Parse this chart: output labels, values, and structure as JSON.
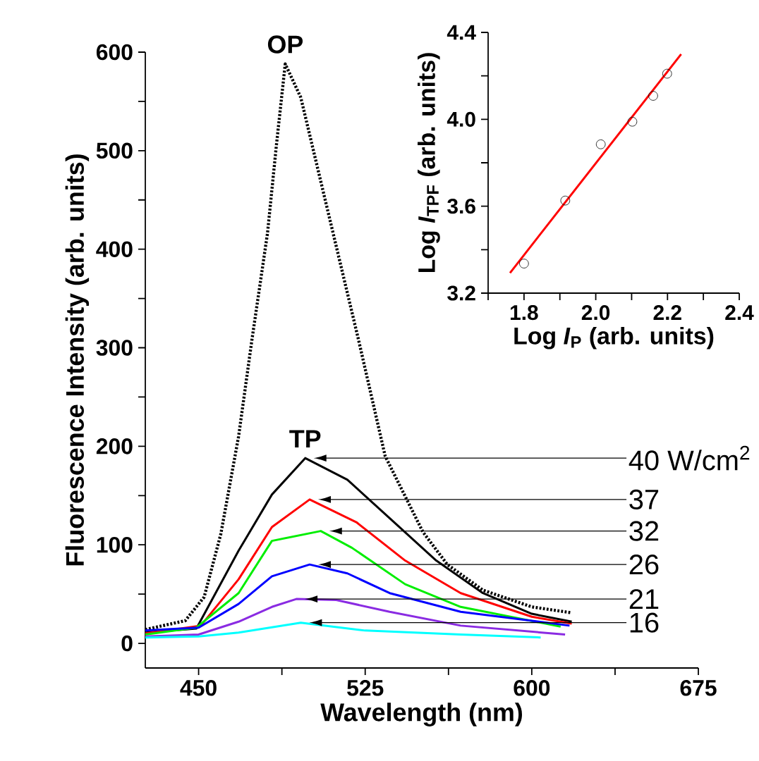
{
  "chart_data": [
    {
      "type": "line",
      "xlabel": "Wavelength (nm)",
      "ylabel": "Fluorescence Intensity (arb. units)",
      "xlim": [
        426,
        675
      ],
      "ylim": [
        -25,
        600
      ],
      "xticks": [
        450,
        {
          "value": 487.5,
          "label": null
        },
        525,
        {
          "value": 562.5,
          "label": null
        },
        600,
        {
          "value": 637.5,
          "label": null
        },
        675
      ],
      "yticks": [
        0,
        {
          "value": 50,
          "label": null
        },
        100,
        {
          "value": 150,
          "label": null
        },
        200,
        {
          "value": 250,
          "label": null
        },
        300,
        {
          "value": 350,
          "label": null
        },
        400,
        {
          "value": 450,
          "label": null
        },
        500,
        {
          "value": 550,
          "label": null
        },
        600
      ],
      "annotations": [
        {
          "text": "OP",
          "x": 489,
          "y": 588
        },
        {
          "text": "TP",
          "x": 498,
          "y": 188
        }
      ],
      "series": [
        {
          "color": "#000000",
          "line_style": "dotted",
          "x": [
            426,
            444,
            452.5,
            460,
            468,
            474,
            481,
            485,
            489,
            496,
            509,
            522,
            534,
            551,
            562,
            578,
            600,
            618
          ],
          "values": [
            14,
            23,
            47,
            111,
            210,
            308,
            416,
            505,
            588,
            554,
            431,
            308,
            190,
            113,
            80,
            54,
            37,
            31
          ]
        },
        {
          "name": "40 W/cm$^{2}$",
          "color": "#000000",
          "x": [
            426,
            449,
            468,
            483,
            498,
            517,
            536,
            557,
            578,
            600,
            618
          ],
          "values": [
            11,
            15,
            94,
            151,
            188,
            166,
            127,
            84,
            51,
            30,
            22
          ]
        },
        {
          "name": "37",
          "color": "#ff0000",
          "x": [
            426,
            451,
            468,
            483,
            500,
            521,
            543,
            568,
            600,
            618
          ],
          "values": [
            10,
            18,
            65,
            118,
            146,
            123,
            84,
            51,
            27,
            20
          ]
        },
        {
          "name": "32",
          "color": "#00ee00",
          "x": [
            426,
            449,
            468,
            483,
            505,
            519,
            543,
            568,
            613
          ],
          "values": [
            9,
            16,
            51,
            104,
            114,
            97,
            60,
            37,
            17
          ]
        },
        {
          "name": "26",
          "color": "#0000ff",
          "x": [
            426,
            450,
            468,
            483,
            500,
            517,
            536,
            568,
            617
          ],
          "values": [
            13,
            16,
            40,
            68,
            80,
            71,
            51,
            32,
            18
          ]
        },
        {
          "name": "21",
          "color": "#8a2be2",
          "x": [
            426,
            450,
            468,
            483,
            494,
            512,
            536,
            568,
            615
          ],
          "values": [
            7,
            9,
            22,
            37,
            45,
            44,
            32,
            18,
            9
          ]
        },
        {
          "name": "16",
          "color": "#00ffff",
          "x": [
            426,
            450,
            468,
            496,
            525,
            568,
            604
          ],
          "values": [
            6,
            7,
            11,
            21,
            13,
            9,
            6
          ]
        }
      ]
    },
    {
      "type": "scatter",
      "xlabel": "Log *I*$_{P}$ (arb. units)",
      "ylabel": "Log *I*$_{TPF}$ (arb. units)",
      "xlim": [
        1.7,
        2.4
      ],
      "ylim": [
        3.2,
        4.4
      ],
      "xticks": [
        {
          "value": 1.7,
          "label": null
        },
        1.8,
        {
          "value": 1.9,
          "label": null
        },
        "2.0",
        {
          "value": 2.1,
          "label": null
        },
        2.2,
        {
          "value": 2.3,
          "label": null
        },
        2.4
      ],
      "yticks": [
        3.2,
        {
          "value": 3.4,
          "label": null
        },
        3.6,
        {
          "value": 3.8,
          "label": null
        },
        "4.0",
        {
          "value": 4.2,
          "label": null
        },
        4.4
      ],
      "marker": "circle",
      "series": [
        {
          "color": "#000000",
          "x": [
            1.8,
            1.915,
            2.014,
            2.102,
            2.16,
            2.199
          ],
          "values": [
            3.336,
            3.626,
            3.885,
            3.989,
            4.108,
            4.21
          ]
        },
        {
          "type": "line",
          "color": "#ff0000",
          "marker": "none",
          "x": [
            1.761,
            2.238
          ],
          "values": [
            3.293,
            4.3
          ]
        }
      ]
    }
  ]
}
